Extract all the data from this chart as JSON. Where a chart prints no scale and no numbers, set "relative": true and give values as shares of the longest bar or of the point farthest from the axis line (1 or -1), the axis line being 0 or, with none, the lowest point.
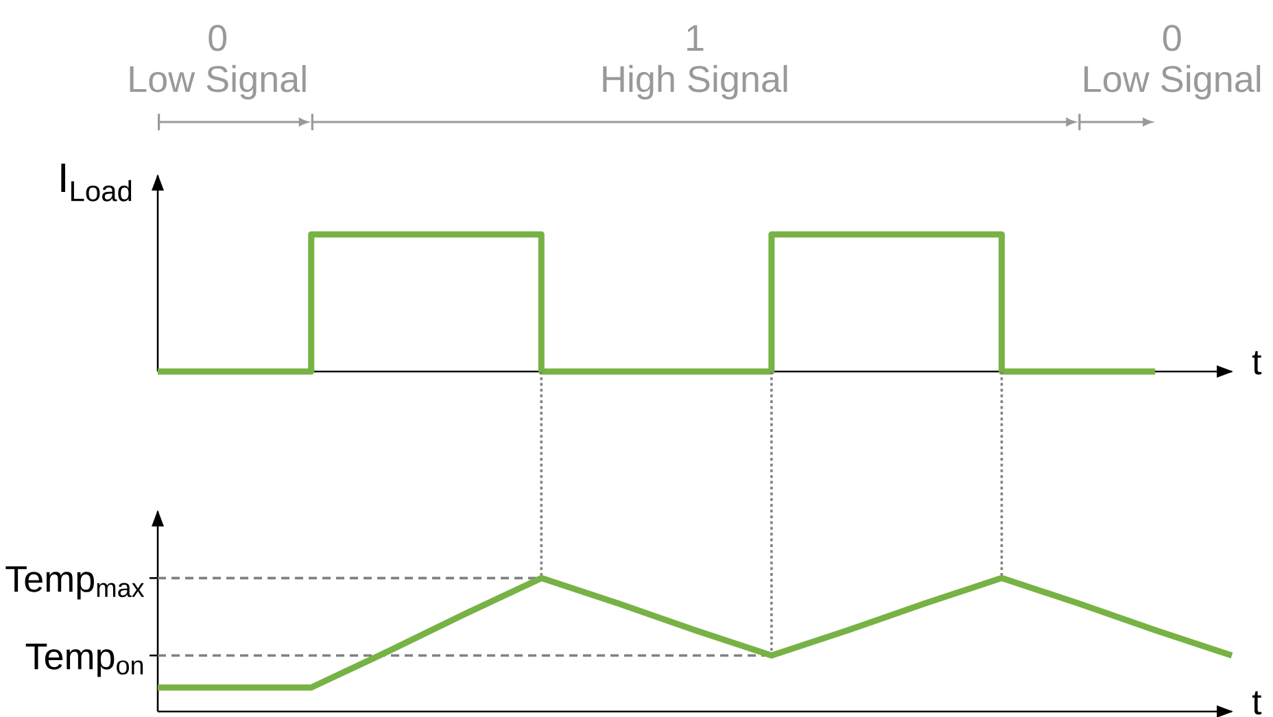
{
  "chart_data": [
    {
      "type": "step",
      "ylabel": "I$_{Load}$",
      "xlabel": "t",
      "relative": true,
      "categories": [
        null,
        null,
        null,
        null,
        null,
        null,
        null,
        null,
        null,
        null,
        null,
        null,
        null,
        null,
        null
      ],
      "values": [
        0,
        0,
        1,
        1,
        1,
        0,
        0,
        0,
        1,
        1,
        1,
        0,
        0,
        0,
        null
      ],
      "color": "#77b244",
      "annotations": [
        "0",
        "Low Signal",
        "1",
        "High Signal",
        "0",
        "Low Signal"
      ]
    },
    {
      "type": "line",
      "xlabel": "t",
      "relative": true,
      "categories": [
        null,
        null,
        null,
        null,
        null,
        null,
        null,
        null,
        null,
        null,
        null,
        null,
        null,
        null,
        null
      ],
      "values": [
        0.18,
        0.18,
        0.18,
        0.45,
        0.73,
        1,
        0.81,
        0.61,
        0.42,
        0.61,
        0.81,
        1,
        0.81,
        0.61,
        0.42
      ],
      "color": "#77b244",
      "ref_lines": [
        {
          "axis": "y",
          "value": 1,
          "label": "Temp$_{max}$",
          "color": "#808080",
          "line_style": "dashed"
        },
        {
          "axis": "y",
          "value": 0.42,
          "label": "Temp$_{on}$",
          "color": "#808080",
          "line_style": "dashed"
        }
      ]
    }
  ]
}
